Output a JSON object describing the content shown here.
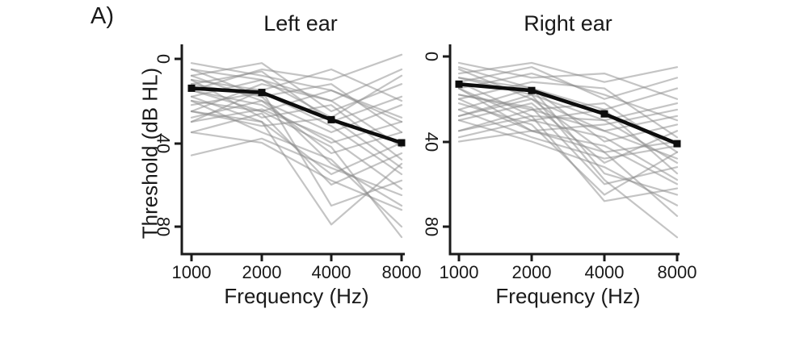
{
  "figure": {
    "label": "A)",
    "panels": [
      {
        "id": "left",
        "title": "Left ear",
        "x_axis_label": "Frequency (Hz)",
        "y_axis_label": "Threshold (dB HL)"
      },
      {
        "id": "right",
        "title": "Right ear",
        "x_axis_label": "Frequency (Hz)",
        "y_axis_label": ""
      }
    ]
  },
  "colors": {
    "background": "#ffffff",
    "axis": "#1a1a1a",
    "text": "#1a1a1a",
    "mean_line": "#0d0d0d",
    "individual_line": "#8a8a8a"
  },
  "chart_data": [
    {
      "type": "line",
      "title": "Left ear",
      "xlabel": "Frequency (Hz)",
      "ylabel": "Threshold (dB HL)",
      "x": [
        1000,
        2000,
        4000,
        8000
      ],
      "x_scale": "log2",
      "x_tick_labels": [
        "1000",
        "2000",
        "4000",
        "8000"
      ],
      "y_ticks": [
        0,
        40,
        80
      ],
      "y_tick_labels": [
        "0",
        "40",
        "80"
      ],
      "y_inverted": true,
      "ylim": [
        -8,
        95
      ],
      "series": [
        {
          "name": "mean",
          "role": "group-mean",
          "values": [
            14,
            16,
            29,
            40
          ]
        }
      ],
      "individual_series": [
        [
          15,
          5,
          10,
          -2
        ],
        [
          5,
          10,
          20,
          5
        ],
        [
          2,
          8,
          15,
          28
        ],
        [
          8,
          2,
          25,
          12
        ],
        [
          10,
          15,
          5,
          20
        ],
        [
          12,
          6,
          30,
          18
        ],
        [
          5,
          18,
          12,
          35
        ],
        [
          18,
          10,
          28,
          8
        ],
        [
          20,
          25,
          15,
          30
        ],
        [
          8,
          20,
          35,
          22
        ],
        [
          25,
          12,
          20,
          42
        ],
        [
          15,
          22,
          40,
          30
        ],
        [
          22,
          16,
          32,
          55
        ],
        [
          10,
          28,
          22,
          48
        ],
        [
          28,
          20,
          45,
          35
        ],
        [
          18,
          30,
          55,
          40
        ],
        [
          30,
          24,
          38,
          62
        ],
        [
          12,
          18,
          50,
          70
        ],
        [
          25,
          32,
          28,
          52
        ],
        [
          35,
          26,
          60,
          45
        ],
        [
          20,
          35,
          48,
          80
        ],
        [
          30,
          15,
          70,
          58
        ],
        [
          46,
          38,
          52,
          65
        ],
        [
          25,
          30,
          79,
          50
        ],
        [
          15,
          25,
          42,
          85
        ],
        [
          35,
          40,
          58,
          72
        ]
      ]
    },
    {
      "type": "line",
      "title": "Right ear",
      "xlabel": "Frequency (Hz)",
      "ylabel": "Threshold (dB HL)",
      "x": [
        1000,
        2000,
        4000,
        8000
      ],
      "x_scale": "log2",
      "x_tick_labels": [
        "1000",
        "2000",
        "4000",
        "8000"
      ],
      "y_ticks": [
        0,
        40,
        80
      ],
      "y_tick_labels": [
        "0",
        "40",
        "80"
      ],
      "y_inverted": true,
      "ylim": [
        -8,
        95
      ],
      "series": [
        {
          "name": "mean",
          "role": "group-mean",
          "values": [
            13,
            16,
            27,
            41
          ]
        }
      ],
      "individual_series": [
        [
          8,
          3,
          12,
          5
        ],
        [
          3,
          10,
          8,
          20
        ],
        [
          12,
          5,
          20,
          10
        ],
        [
          5,
          15,
          25,
          15
        ],
        [
          15,
          8,
          18,
          30
        ],
        [
          10,
          18,
          30,
          22
        ],
        [
          20,
          12,
          15,
          38
        ],
        [
          6,
          20,
          35,
          28
        ],
        [
          18,
          25,
          22,
          45
        ],
        [
          25,
          15,
          40,
          32
        ],
        [
          12,
          28,
          30,
          50
        ],
        [
          28,
          20,
          45,
          40
        ],
        [
          15,
          30,
          25,
          55
        ],
        [
          30,
          22,
          50,
          35
        ],
        [
          20,
          35,
          42,
          60
        ],
        [
          35,
          25,
          35,
          48
        ],
        [
          10,
          15,
          55,
          65
        ],
        [
          25,
          38,
          48,
          42
        ],
        [
          38,
          30,
          38,
          58
        ],
        [
          18,
          24,
          60,
          52
        ],
        [
          30,
          40,
          52,
          70
        ],
        [
          22,
          32,
          65,
          45
        ],
        [
          40,
          35,
          45,
          75
        ],
        [
          28,
          18,
          58,
          85
        ],
        [
          35,
          28,
          68,
          62
        ],
        [
          15,
          35,
          32,
          25
        ]
      ]
    }
  ]
}
